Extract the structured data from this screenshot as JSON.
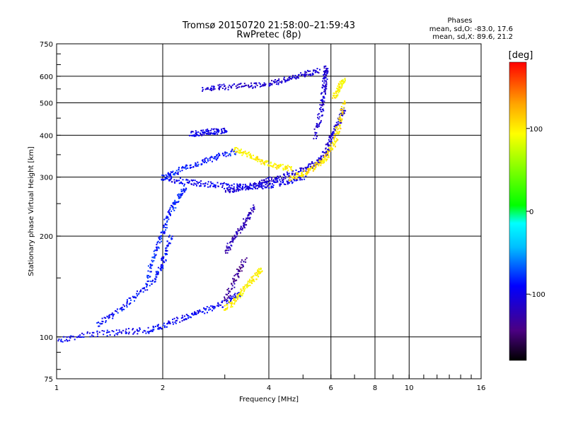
{
  "chart_data": {
    "type": "scatter",
    "title": "Tromsø 20150720 21:58:00–21:59:43",
    "subtitle": "RwPretec (8p)",
    "xlabel": "Frequency [MHz]",
    "ylabel": "Stationary phase Virtual Height [km]",
    "x_scale": "log",
    "y_scale": "log",
    "xlim": [
      1,
      16
    ],
    "ylim": [
      75,
      750
    ],
    "x_ticks": [
      1,
      2,
      4,
      6,
      8,
      10,
      16
    ],
    "x_tick_labels": [
      "1",
      "2",
      "4",
      "6",
      "8",
      "10",
      "16"
    ],
    "y_ticks": [
      75,
      100,
      200,
      300,
      400,
      500,
      600,
      750
    ],
    "y_tick_labels": [
      "75",
      "100",
      "200",
      "300",
      "400",
      "500",
      "600",
      "750"
    ],
    "grid": true,
    "phases_block": {
      "heading": "Phases",
      "line_o": "mean, sd,O: -83.0, 17.6",
      "line_x": "mean, sd,X:  89.6, 21.2"
    },
    "colorbar": {
      "label": "[deg]",
      "range": [
        -180,
        180
      ],
      "ticks": [
        100,
        0,
        -100
      ],
      "tick_labels": [
        "100",
        "0",
        "-100"
      ]
    },
    "traces": [
      {
        "x": [
          1.0,
          1.2,
          1.5,
          1.8,
          2.0,
          2.3,
          2.6,
          3.0,
          3.3
        ],
        "y": [
          98,
          102,
          104,
          105,
          108,
          115,
          120,
          127,
          135
        ],
        "phase": -95
      },
      {
        "x": [
          1.3,
          1.5,
          1.7,
          1.9,
          2.0,
          2.1
        ],
        "y": [
          110,
          120,
          135,
          150,
          170,
          200
        ],
        "phase": -90
      },
      {
        "x": [
          1.8,
          1.9,
          2.0,
          2.1,
          2.2,
          2.3
        ],
        "y": [
          150,
          180,
          210,
          240,
          260,
          280
        ],
        "phase": -85
      },
      {
        "x": [
          2.0,
          2.3,
          2.6,
          3.0,
          3.5,
          4.0,
          4.5,
          5.0
        ],
        "y": [
          300,
          292,
          287,
          284,
          281,
          285,
          292,
          300
        ],
        "phase": -98
      },
      {
        "x": [
          3.0,
          3.3,
          3.7,
          4.0,
          4.5,
          5.0,
          5.5,
          5.8,
          6.0,
          6.3,
          6.5
        ],
        "y": [
          275,
          280,
          285,
          295,
          305,
          318,
          335,
          360,
          400,
          440,
          480
        ],
        "phase": -108
      },
      {
        "x": [
          5.4,
          5.6,
          5.7,
          5.75,
          5.8
        ],
        "y": [
          400,
          470,
          540,
          600,
          640
        ],
        "phase": -110
      },
      {
        "x": [
          2.0,
          2.2,
          2.5,
          2.8,
          3.2
        ],
        "y": [
          300,
          315,
          330,
          345,
          360
        ],
        "phase": -85
      },
      {
        "x": [
          2.6,
          3.0,
          3.5,
          4.0,
          4.5,
          5.0,
          5.5
        ],
        "y": [
          555,
          560,
          565,
          575,
          590,
          610,
          625
        ],
        "phase": -110
      },
      {
        "x": [
          2.4,
          2.6,
          2.8,
          3.0
        ],
        "y": [
          405,
          410,
          412,
          415
        ],
        "phase": -100
      },
      {
        "x": [
          3.2,
          3.5,
          3.8,
          4.2,
          4.6
        ],
        "y": [
          365,
          350,
          335,
          325,
          320
        ],
        "phase": 100
      },
      {
        "x": [
          4.6,
          5.0,
          5.4,
          5.8,
          6.1,
          6.3,
          6.5
        ],
        "y": [
          300,
          310,
          325,
          345,
          380,
          430,
          500
        ],
        "phase": 105
      },
      {
        "x": [
          6.1,
          6.3,
          6.5
        ],
        "y": [
          520,
          560,
          590
        ],
        "phase": 100
      },
      {
        "x": [
          3.0,
          3.2,
          3.4,
          3.6,
          3.8
        ],
        "y": [
          122,
          130,
          140,
          150,
          160
        ],
        "phase": 100
      },
      {
        "x": [
          3.0,
          3.2,
          3.4,
          3.6
        ],
        "y": [
          180,
          200,
          220,
          245
        ],
        "phase": -120
      },
      {
        "x": [
          3.0,
          3.2,
          3.4
        ],
        "y": [
          130,
          150,
          170
        ],
        "phase": -135
      }
    ]
  }
}
